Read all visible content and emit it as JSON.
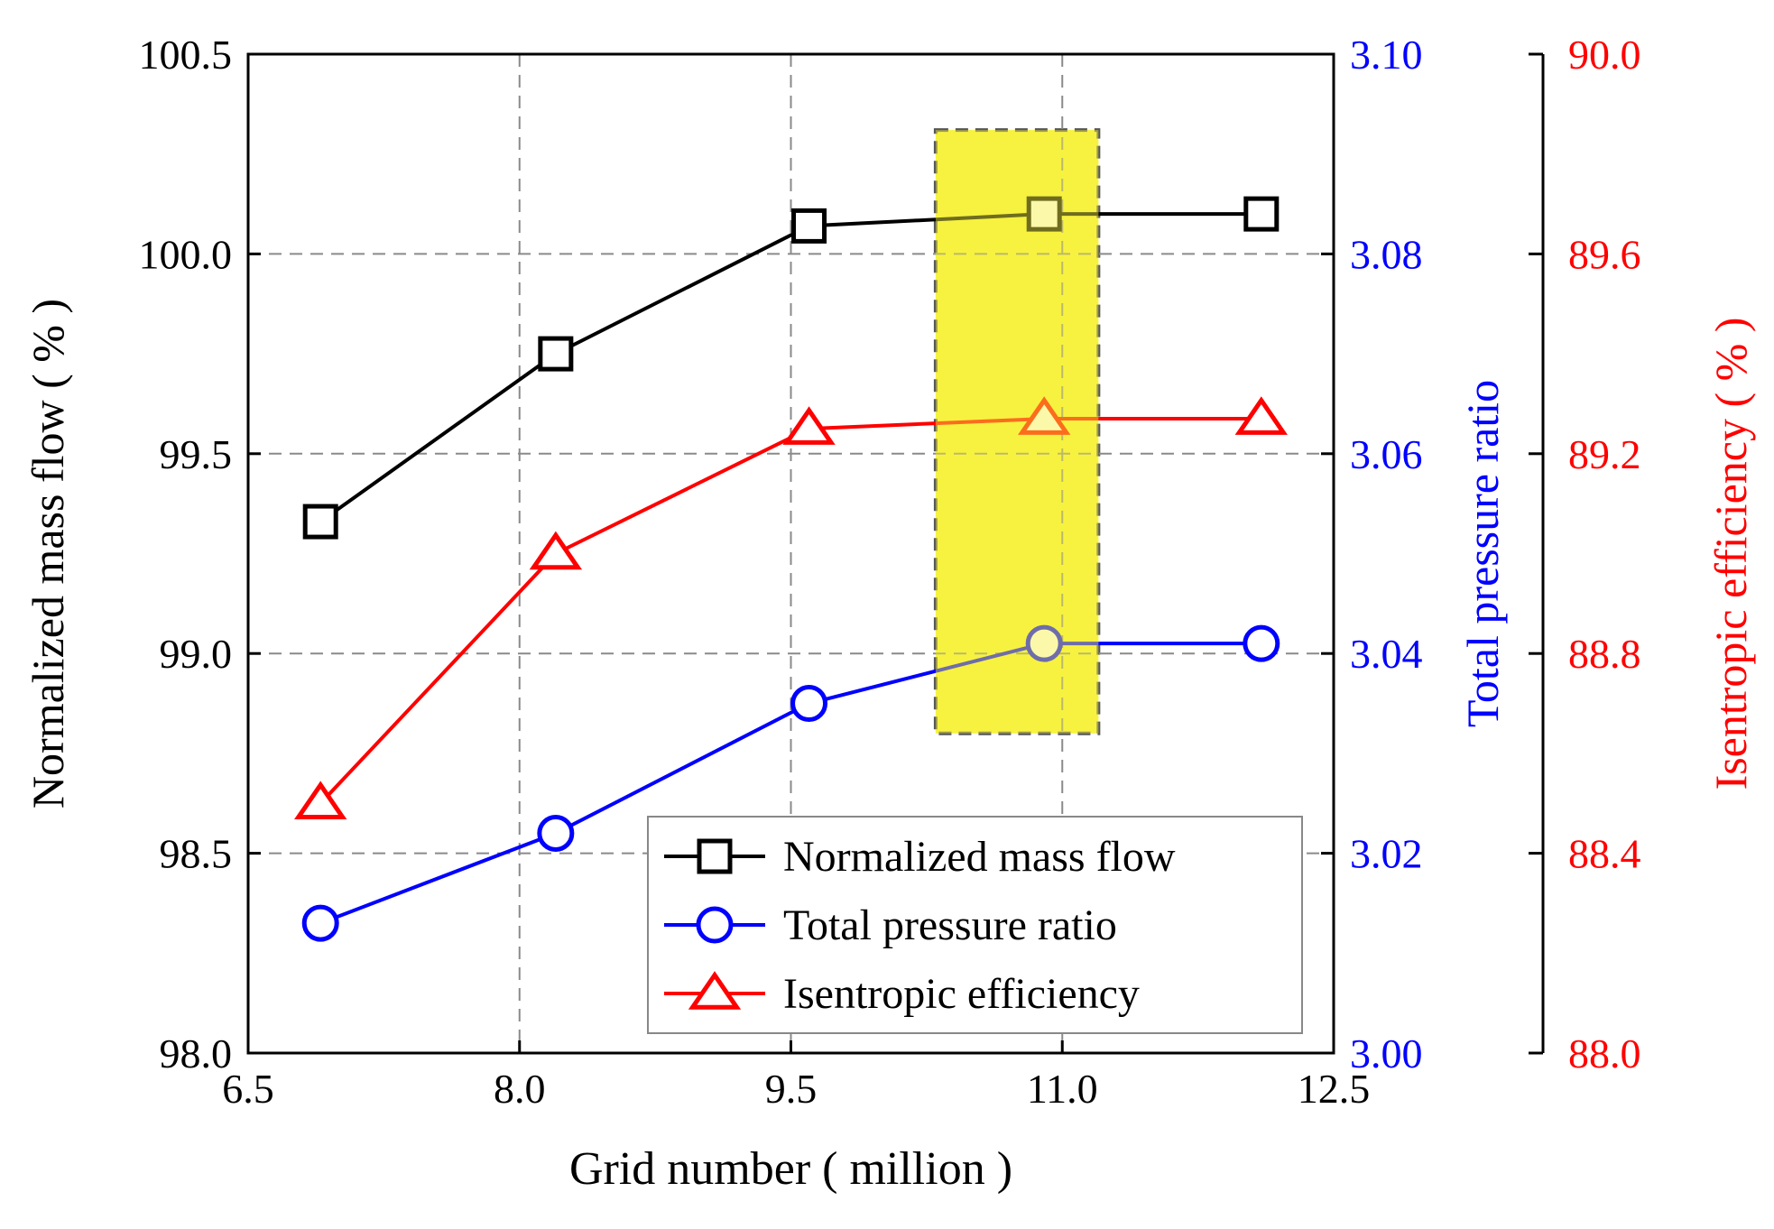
{
  "chart_data": {
    "type": "line",
    "xlabel": "Grid number ( million )",
    "xlim": [
      6.5,
      12.5
    ],
    "x_ticks": [
      "6.5",
      "8.0",
      "9.5",
      "11.0",
      "12.5"
    ],
    "grid": true,
    "legend_position": "bottom-right",
    "highlight": {
      "x_range": [
        10.3,
        11.2
      ],
      "y_range_mass_flow": [
        98.8,
        100.31
      ],
      "color": "#f7f240"
    },
    "axes": [
      {
        "id": "mass_flow",
        "label": "Normalized mass flow ( % )",
        "side": "left",
        "ylim": [
          98.0,
          100.5
        ],
        "ticks": [
          "98.0",
          "98.5",
          "99.0",
          "99.5",
          "100.0",
          "100.5"
        ],
        "color": "#000000"
      },
      {
        "id": "pressure",
        "label": "Total pressure ratio",
        "side": "right",
        "ylim": [
          3.0,
          3.1
        ],
        "ticks": [
          "3.00",
          "3.02",
          "3.04",
          "3.06",
          "3.08",
          "3.10"
        ],
        "color": "#0000ff"
      },
      {
        "id": "efficiency",
        "label": "Isentropic efficiency ( % )",
        "side": "right-outer",
        "ylim": [
          88.0,
          90.0
        ],
        "ticks": [
          "88.0",
          "88.4",
          "88.8",
          "89.2",
          "89.6",
          "90.0"
        ],
        "color": "#ff0000"
      }
    ],
    "series": [
      {
        "name": "Normalized mass flow",
        "axis": "mass_flow",
        "marker": "square",
        "color": "#000000",
        "x": [
          6.9,
          8.2,
          9.6,
          10.9,
          12.1
        ],
        "y": [
          99.33,
          99.75,
          100.07,
          100.1,
          100.1
        ]
      },
      {
        "name": "Total pressure ratio",
        "axis": "pressure",
        "marker": "circle",
        "color": "#0000ff",
        "x": [
          6.9,
          8.2,
          9.6,
          10.9,
          12.1
        ],
        "y": [
          3.013,
          3.022,
          3.035,
          3.041,
          3.041
        ]
      },
      {
        "name": "Isentropic efficiency",
        "axis": "efficiency",
        "marker": "triangle",
        "color": "#ff0000",
        "x": [
          6.9,
          8.2,
          9.6,
          10.9,
          12.1
        ],
        "y": [
          88.5,
          89.0,
          89.25,
          89.27,
          89.27
        ]
      }
    ]
  }
}
